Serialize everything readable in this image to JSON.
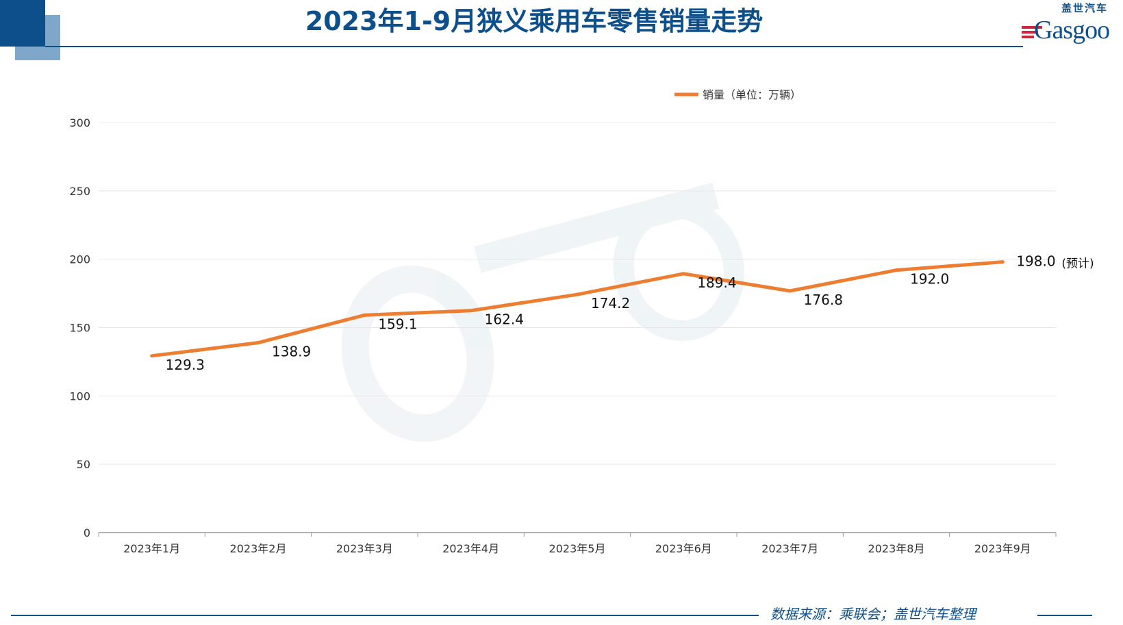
{
  "header": {
    "title": "2023年1-9月狭义乘用车零售销量走势"
  },
  "logo": {
    "cn": "盖世汽车",
    "en": "Gasgoo"
  },
  "footer": {
    "source": "数据来源：乘联会；盖世汽车整理"
  },
  "colors": {
    "brand": "#0d4f8b",
    "series": "#ed7d31",
    "grid": "#e8e8e8"
  },
  "chart_data": {
    "type": "line",
    "title": "",
    "categories": [
      "2023年1月",
      "2023年2月",
      "2023年3月",
      "2023年4月",
      "2023年5月",
      "2023年6月",
      "2023年7月",
      "2023年8月",
      "2023年9月"
    ],
    "series": [
      {
        "name": "销量（单位：万辆）",
        "values": [
          129.3,
          138.9,
          159.1,
          162.4,
          174.2,
          189.4,
          176.8,
          192.0,
          198.0
        ]
      }
    ],
    "data_labels": [
      "129.3",
      "138.9",
      "159.1",
      "162.4",
      "174.2",
      "189.4",
      "176.8",
      "192.0",
      "198.0"
    ],
    "annotation": "(预计)",
    "ylim": [
      0,
      300
    ],
    "yticks": [
      "0",
      "50",
      "100",
      "150",
      "200",
      "250",
      "300"
    ],
    "grid": true,
    "legend": "top-center"
  }
}
